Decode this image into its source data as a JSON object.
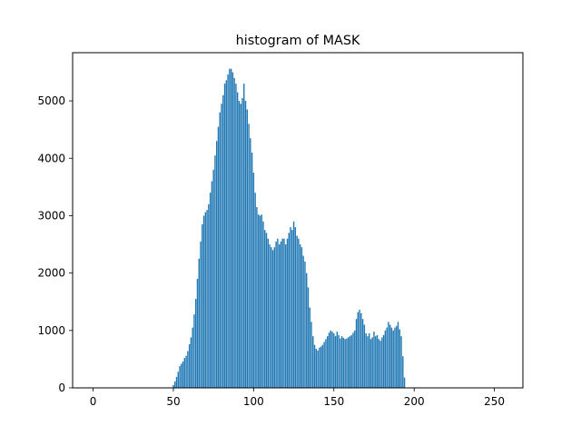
{
  "chart_data": {
    "type": "bar",
    "title": "histogram of MASK",
    "xlabel": "",
    "ylabel": "",
    "xlim": [
      -12.75,
      267.75
    ],
    "ylim": [
      0,
      5840
    ],
    "x_ticks": [
      0,
      50,
      100,
      150,
      200,
      250
    ],
    "y_ticks": [
      0,
      1000,
      2000,
      3000,
      4000,
      5000
    ],
    "grid": false,
    "color": "#1f77b4",
    "x_start": 0,
    "values": [
      0,
      0,
      0,
      0,
      0,
      0,
      0,
      0,
      0,
      0,
      0,
      0,
      0,
      0,
      0,
      0,
      0,
      0,
      0,
      0,
      0,
      0,
      0,
      0,
      0,
      0,
      0,
      0,
      0,
      0,
      0,
      0,
      0,
      0,
      0,
      0,
      0,
      0,
      0,
      0,
      0,
      0,
      0,
      0,
      0,
      0,
      0,
      0,
      0,
      0,
      50,
      110,
      190,
      280,
      380,
      420,
      460,
      520,
      560,
      640,
      760,
      880,
      1050,
      1280,
      1550,
      1900,
      2250,
      2550,
      2850,
      3000,
      3060,
      3100,
      3200,
      3400,
      3600,
      3800,
      4050,
      4300,
      4550,
      4800,
      4950,
      5100,
      5300,
      5360,
      5460,
      5560,
      5560,
      5500,
      5400,
      5300,
      5150,
      5000,
      4950,
      5050,
      5300,
      5000,
      4850,
      4600,
      4350,
      4100,
      3750,
      3400,
      3150,
      3020,
      3000,
      3020,
      2900,
      2750,
      2700,
      2600,
      2500,
      2450,
      2400,
      2450,
      2550,
      2600,
      2500,
      2550,
      2600,
      2600,
      2500,
      2600,
      2700,
      2800,
      2750,
      2900,
      2800,
      2650,
      2600,
      2500,
      2450,
      2300,
      2200,
      2000,
      1750,
      1400,
      1150,
      900,
      750,
      680,
      650,
      700,
      720,
      750,
      800,
      850,
      900,
      960,
      1000,
      980,
      950,
      900,
      980,
      920,
      860,
      900,
      870,
      850,
      860,
      880,
      900,
      920,
      960,
      1000,
      1200,
      1320,
      1360,
      1300,
      1200,
      1100,
      950,
      900,
      950,
      850,
      880,
      980,
      900,
      920,
      850,
      820,
      880,
      920,
      1000,
      1050,
      1150,
      1100,
      1050,
      1000,
      1050,
      1080,
      1150,
      1020,
      900,
      550,
      180,
      0,
      0,
      0,
      0,
      0,
      0,
      0,
      0,
      0,
      0,
      0,
      0,
      0,
      0,
      0,
      0,
      0,
      0,
      0,
      0,
      0,
      0,
      0,
      0,
      0,
      0,
      0,
      0,
      0,
      0,
      0,
      0,
      0,
      0,
      0,
      0,
      0,
      0,
      0,
      0,
      0,
      0,
      0,
      0,
      0,
      0,
      0,
      0,
      0,
      0,
      0,
      0,
      0,
      0,
      0,
      0,
      0,
      0,
      0,
      0,
      0
    ]
  }
}
